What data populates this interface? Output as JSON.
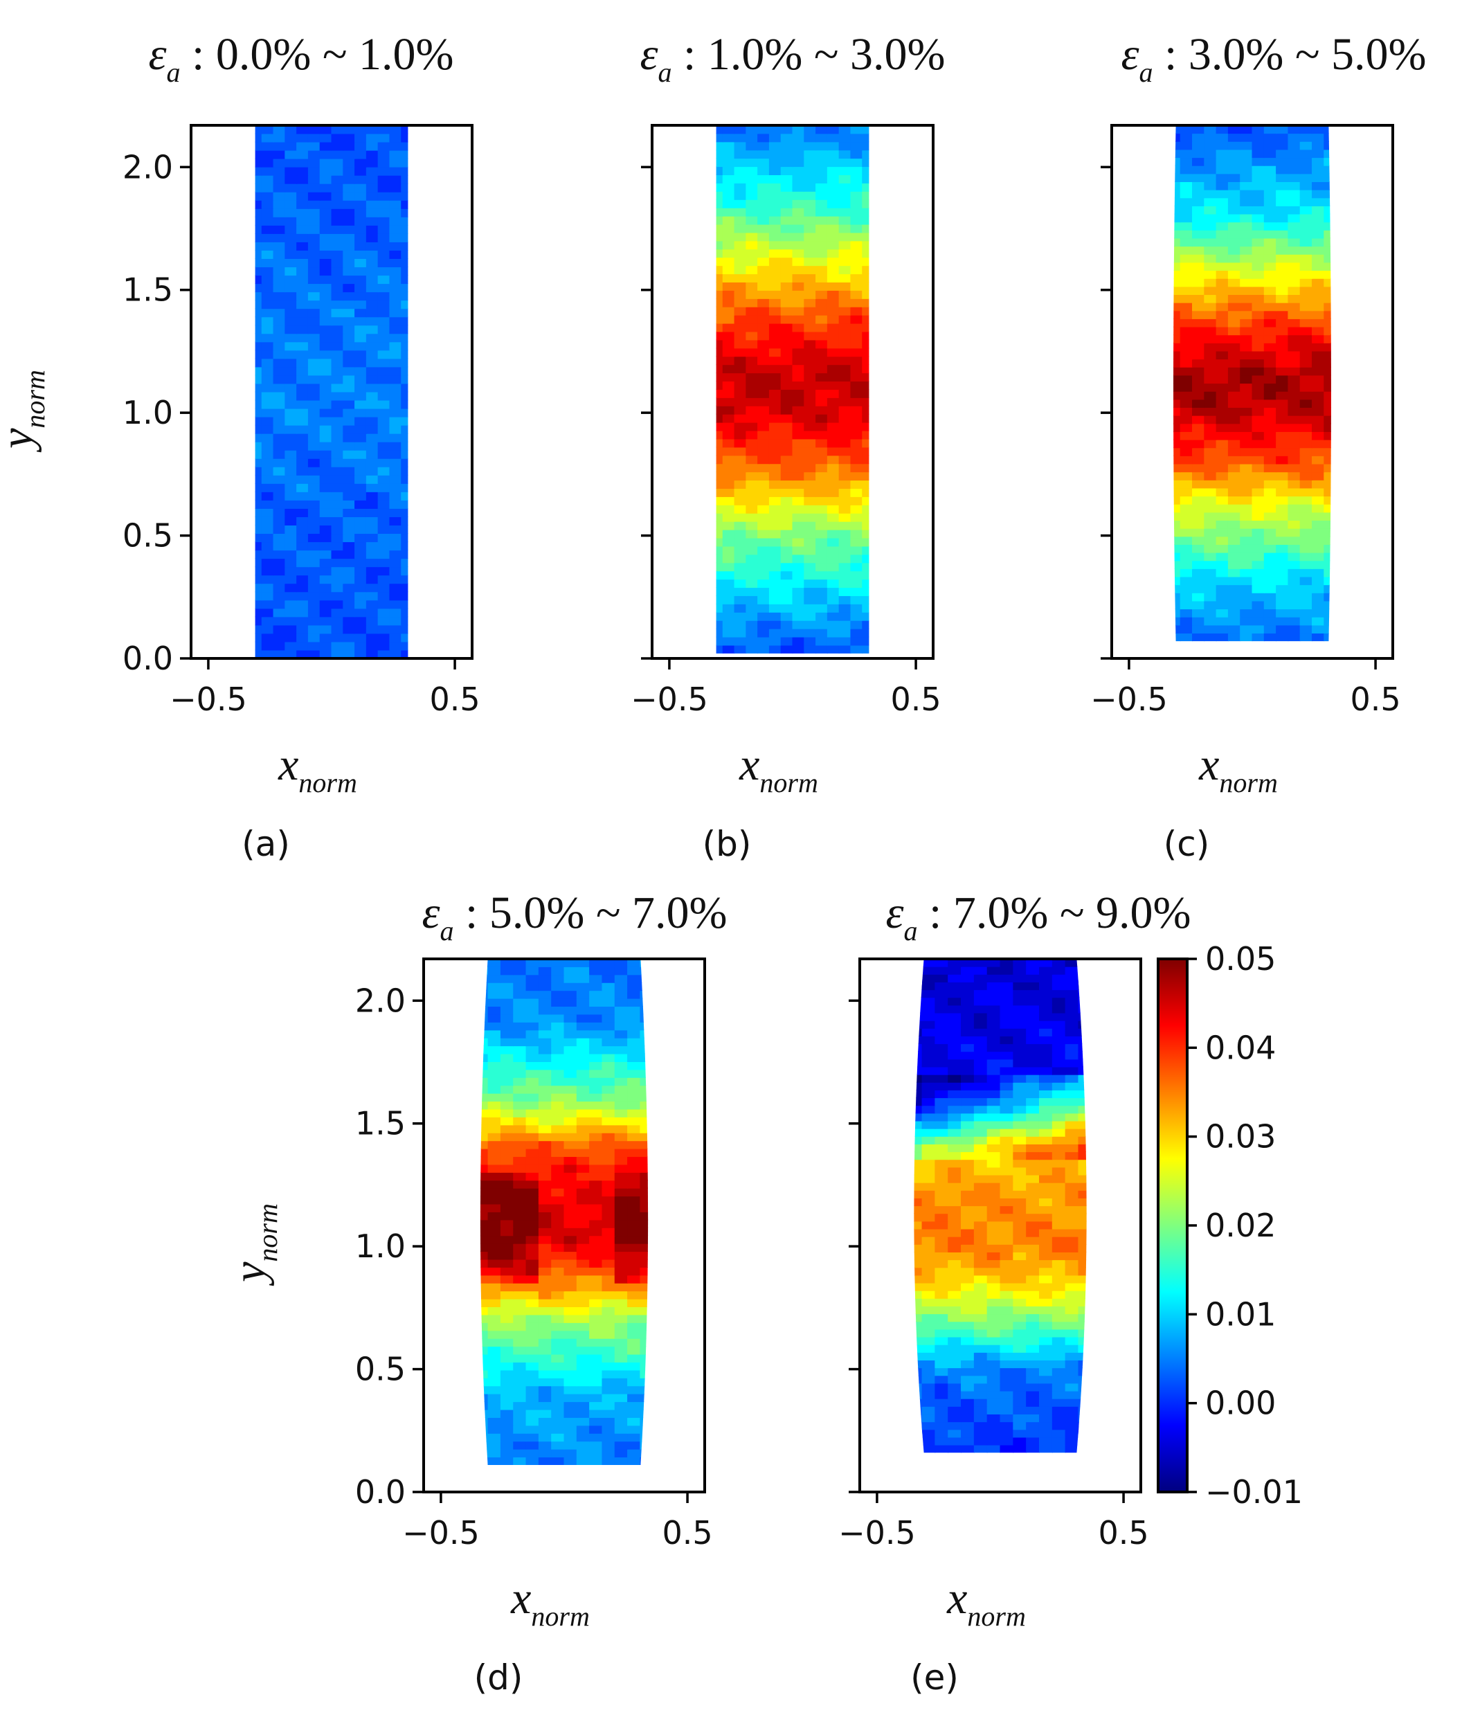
{
  "chart_data": [
    {
      "type": "heatmap",
      "panel": "(a)",
      "title_symbol": "ε",
      "title_subscript": "a",
      "title_range": " : 0.0% ~ 1.0%",
      "xlabel": "x",
      "xlabel_sub": "norm",
      "ylabel": "y",
      "ylabel_sub": "norm",
      "xlim": [
        -0.57,
        0.57
      ],
      "ylim": [
        0.0,
        2.17
      ],
      "x_ticks": [
        -0.5,
        0.5
      ],
      "x_tick_labels": [
        "−0.5",
        "0.5"
      ],
      "y_ticks": [
        0.0,
        0.5,
        1.0,
        1.5,
        2.0
      ],
      "y_tick_labels": [
        "0.0",
        "0.5",
        "1.0",
        "1.5",
        "2.0"
      ],
      "show_y_tick_labels": true,
      "specimen_x": [
        -0.31,
        0.31
      ],
      "specimen_y": [
        0.0,
        2.17
      ],
      "bulge": 0.0,
      "strain_profile_y": [
        0.0,
        0.5,
        1.0,
        1.5,
        2.17
      ],
      "strain_profile_value": [
        0.002,
        0.003,
        0.005,
        0.004,
        0.002
      ]
    },
    {
      "type": "heatmap",
      "panel": "(b)",
      "title_symbol": "ε",
      "title_subscript": "a",
      "title_range": " : 1.0% ~ 3.0%",
      "xlabel": "x",
      "xlabel_sub": "norm",
      "xlim": [
        -0.57,
        0.57
      ],
      "ylim": [
        0.0,
        2.17
      ],
      "x_ticks": [
        -0.5,
        0.5
      ],
      "x_tick_labels": [
        "−0.5",
        "0.5"
      ],
      "y_ticks": [
        0.0,
        0.5,
        1.0,
        1.5,
        2.0
      ],
      "show_y_tick_labels": false,
      "specimen_x": [
        -0.31,
        0.31
      ],
      "specimen_y": [
        0.02,
        2.17
      ],
      "bulge": 0.0,
      "strain_profile_y": [
        0.02,
        0.2,
        0.5,
        0.75,
        1.0,
        1.15,
        1.35,
        1.6,
        1.85,
        2.17
      ],
      "strain_profile_value": [
        0.002,
        0.008,
        0.02,
        0.035,
        0.045,
        0.046,
        0.04,
        0.028,
        0.015,
        0.004
      ]
    },
    {
      "type": "heatmap",
      "panel": "(c)",
      "title_symbol": "ε",
      "title_subscript": "a",
      "title_range": " : 3.0% ~ 5.0%",
      "xlabel": "x",
      "xlabel_sub": "norm",
      "xlim": [
        -0.57,
        0.57
      ],
      "ylim": [
        0.0,
        2.17
      ],
      "x_ticks": [
        -0.5,
        0.5
      ],
      "x_tick_labels": [
        "−0.5",
        "0.5"
      ],
      "y_ticks": [
        0.0,
        0.5,
        1.0,
        1.5,
        2.0
      ],
      "show_y_tick_labels": false,
      "specimen_x": [
        -0.31,
        0.31
      ],
      "specimen_y": [
        0.07,
        2.17
      ],
      "bulge": 0.01,
      "strain_profile_y": [
        0.07,
        0.3,
        0.6,
        0.8,
        1.0,
        1.15,
        1.35,
        1.55,
        1.8,
        2.17
      ],
      "strain_profile_value": [
        0.004,
        0.01,
        0.025,
        0.038,
        0.046,
        0.048,
        0.04,
        0.028,
        0.012,
        0.002
      ]
    },
    {
      "type": "heatmap",
      "panel": "(d)",
      "title_symbol": "ε",
      "title_subscript": "a",
      "title_range": " : 5.0% ~ 7.0%",
      "xlabel": "x",
      "xlabel_sub": "norm",
      "ylabel": "y",
      "ylabel_sub": "norm",
      "xlim": [
        -0.57,
        0.57
      ],
      "ylim": [
        0.0,
        2.17
      ],
      "x_ticks": [
        -0.5,
        0.5
      ],
      "x_tick_labels": [
        "−0.5",
        "0.5"
      ],
      "y_ticks": [
        0.0,
        0.5,
        1.0,
        1.5,
        2.0
      ],
      "y_tick_labels": [
        "0.0",
        "0.5",
        "1.0",
        "1.5",
        "2.0"
      ],
      "show_y_tick_labels": true,
      "specimen_x": [
        -0.31,
        0.31
      ],
      "specimen_y": [
        0.11,
        2.17
      ],
      "bulge": 0.03,
      "strain_profile_y": [
        0.11,
        0.4,
        0.7,
        0.9,
        1.05,
        1.2,
        1.4,
        1.6,
        1.9,
        2.17
      ],
      "strain_profile_value": [
        0.005,
        0.008,
        0.022,
        0.04,
        0.047,
        0.046,
        0.038,
        0.02,
        0.006,
        0.004
      ]
    },
    {
      "type": "heatmap",
      "panel": "(e)",
      "title_symbol": "ε",
      "title_subscript": "a",
      "title_range": " : 7.0% ~ 9.0%",
      "xlabel": "x",
      "xlabel_sub": "norm",
      "xlim": [
        -0.57,
        0.57
      ],
      "ylim": [
        0.0,
        2.17
      ],
      "x_ticks": [
        -0.5,
        0.5
      ],
      "x_tick_labels": [
        "−0.5",
        "0.5"
      ],
      "y_ticks": [
        0.0,
        0.5,
        1.0,
        1.5,
        2.0
      ],
      "show_y_tick_labels": false,
      "specimen_x": [
        -0.31,
        0.31
      ],
      "specimen_y": [
        0.16,
        2.17
      ],
      "bulge": 0.04,
      "strain_profile_y": [
        0.16,
        0.5,
        0.7,
        0.85,
        1.0,
        1.2,
        1.4,
        1.55,
        1.7,
        2.17
      ],
      "strain_profile_value": [
        0.0,
        0.005,
        0.02,
        0.03,
        0.035,
        0.034,
        0.03,
        0.01,
        -0.003,
        -0.005
      ]
    }
  ],
  "colorbar": {
    "colormap": "jet",
    "vmin": -0.01,
    "vmax": 0.05,
    "ticks": [
      0.05,
      0.04,
      0.03,
      0.02,
      0.01,
      0.0,
      -0.01
    ],
    "tick_labels": [
      "0.05",
      "0.04",
      "0.03",
      "0.02",
      "0.01",
      "0.00",
      "−0.01"
    ]
  }
}
